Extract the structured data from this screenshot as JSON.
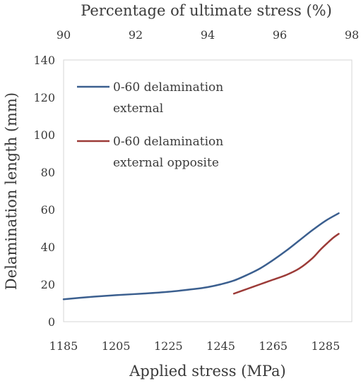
{
  "chart_data": {
    "type": "line",
    "title": "",
    "xlabel": "Applied stress (MPa)",
    "ylabel": "Delamination length (mm)",
    "x2label": "Percentage of ultimate stress (%)",
    "xlim": [
      1185,
      1295
    ],
    "ylim": [
      0,
      140
    ],
    "x2lim": [
      90,
      98
    ],
    "x_ticks": [
      "1185",
      "1205",
      "1225",
      "1245",
      "1265",
      "1285"
    ],
    "x2_ticks": [
      "90",
      "92",
      "94",
      "96",
      "98"
    ],
    "y_ticks": [
      "0",
      "20",
      "40",
      "60",
      "80",
      "100",
      "120",
      "140"
    ],
    "grid": false,
    "legend_position": "top-left",
    "series": [
      {
        "name": "0-60 delamination external",
        "legend_lines": [
          "0-60 delamination",
          "external"
        ],
        "color": "#3b5f8f",
        "x": [
          1185,
          1195,
          1205,
          1215,
          1225,
          1235,
          1240,
          1245,
          1250,
          1255,
          1260,
          1265,
          1270,
          1275,
          1280,
          1285,
          1290
        ],
        "y": [
          12,
          13.2,
          14.2,
          15,
          16,
          17.5,
          18.5,
          20,
          22,
          25,
          28.5,
          33,
          38,
          43.5,
          49,
          54,
          58
        ]
      },
      {
        "name": "0-60 delamination external opposite",
        "legend_lines": [
          "0-60 delamination",
          "external opposite"
        ],
        "color": "#9c3b38",
        "x": [
          1250,
          1255,
          1260,
          1265,
          1270,
          1275,
          1280,
          1283,
          1286,
          1288,
          1290
        ],
        "y": [
          15,
          17.5,
          20,
          22.5,
          25,
          28.5,
          34,
          38.5,
          42.5,
          45,
          47
        ]
      }
    ]
  }
}
